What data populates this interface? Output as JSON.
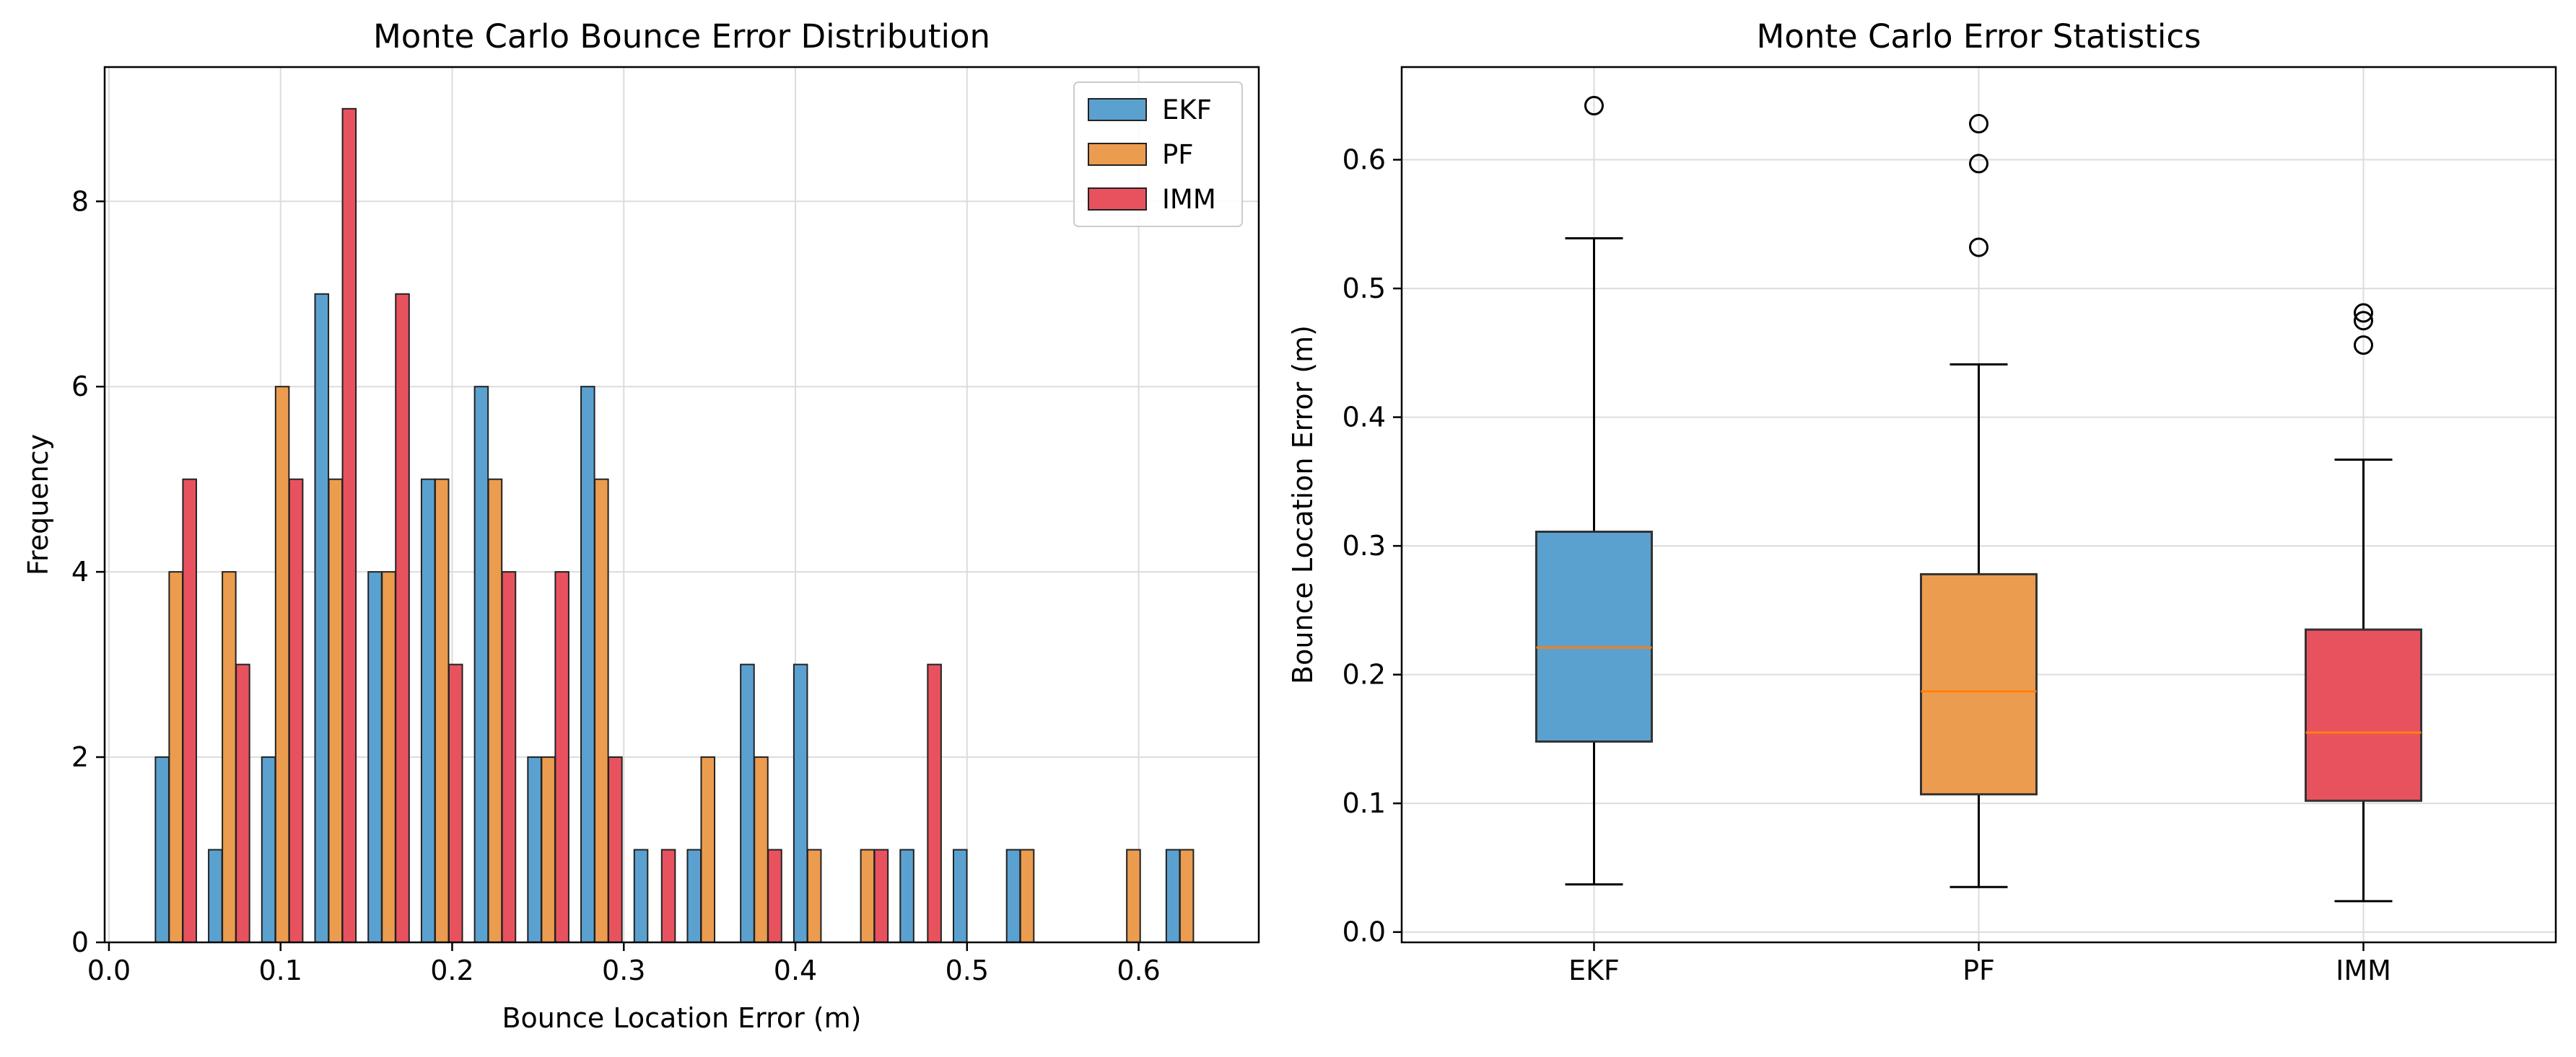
{
  "chart_data": [
    {
      "type": "bar",
      "title": "Monte Carlo Bounce Error Distribution",
      "xlabel": "Bounce Location Error (m)",
      "ylabel": "Frequency",
      "xlim": [
        -0.0025,
        0.67
      ],
      "ylim": [
        0,
        9.45
      ],
      "xticks": [
        "0.0",
        "0.1",
        "0.2",
        "0.3",
        "0.4",
        "0.5",
        "0.6"
      ],
      "yticks": [
        "0",
        "2",
        "4",
        "6",
        "8"
      ],
      "grid": true,
      "legend_position": "top-right",
      "series": [
        {
          "name": "EKF",
          "color": "#5ba1d0",
          "points": [
            {
              "x": 0.031,
              "value": 2
            },
            {
              "x": 0.062,
              "value": 1
            },
            {
              "x": 0.093,
              "value": 2
            },
            {
              "x": 0.124,
              "value": 7
            },
            {
              "x": 0.155,
              "value": 4
            },
            {
              "x": 0.186,
              "value": 5
            },
            {
              "x": 0.217,
              "value": 6
            },
            {
              "x": 0.248,
              "value": 2
            },
            {
              "x": 0.279,
              "value": 6
            },
            {
              "x": 0.31,
              "value": 1
            },
            {
              "x": 0.341,
              "value": 1
            },
            {
              "x": 0.372,
              "value": 3
            },
            {
              "x": 0.403,
              "value": 3
            },
            {
              "x": 0.465,
              "value": 1
            },
            {
              "x": 0.496,
              "value": 1
            },
            {
              "x": 0.527,
              "value": 1
            },
            {
              "x": 0.62,
              "value": 1
            }
          ]
        },
        {
          "name": "PF",
          "color": "#ec9c4f",
          "points": [
            {
              "x": 0.039,
              "value": 4
            },
            {
              "x": 0.07,
              "value": 4
            },
            {
              "x": 0.101,
              "value": 6
            },
            {
              "x": 0.132,
              "value": 5
            },
            {
              "x": 0.163,
              "value": 4
            },
            {
              "x": 0.194,
              "value": 5
            },
            {
              "x": 0.225,
              "value": 5
            },
            {
              "x": 0.256,
              "value": 2
            },
            {
              "x": 0.287,
              "value": 5
            },
            {
              "x": 0.349,
              "value": 2
            },
            {
              "x": 0.38,
              "value": 2
            },
            {
              "x": 0.411,
              "value": 1
            },
            {
              "x": 0.442,
              "value": 1
            },
            {
              "x": 0.535,
              "value": 1
            },
            {
              "x": 0.597,
              "value": 1
            },
            {
              "x": 0.628,
              "value": 1
            }
          ]
        },
        {
          "name": "IMM",
          "color": "#e8525f",
          "points": [
            {
              "x": 0.047,
              "value": 5
            },
            {
              "x": 0.078,
              "value": 3
            },
            {
              "x": 0.109,
              "value": 5
            },
            {
              "x": 0.14,
              "value": 9
            },
            {
              "x": 0.171,
              "value": 7
            },
            {
              "x": 0.202,
              "value": 3
            },
            {
              "x": 0.233,
              "value": 4
            },
            {
              "x": 0.264,
              "value": 4
            },
            {
              "x": 0.295,
              "value": 2
            },
            {
              "x": 0.326,
              "value": 1
            },
            {
              "x": 0.388,
              "value": 1
            },
            {
              "x": 0.45,
              "value": 1
            },
            {
              "x": 0.481,
              "value": 3
            }
          ]
        }
      ]
    },
    {
      "type": "box",
      "title": "Monte Carlo Error Statistics",
      "xlabel": "",
      "ylabel": "Bounce Location Error (m)",
      "ylim": [
        -0.008,
        0.672
      ],
      "yticks": [
        "0.0",
        "0.1",
        "0.2",
        "0.3",
        "0.4",
        "0.5",
        "0.6"
      ],
      "grid": true,
      "categories": [
        "EKF",
        "PF",
        "IMM"
      ],
      "boxes": [
        {
          "name": "EKF",
          "color": "#5ba1d0",
          "whisker_low": 0.037,
          "q1": 0.148,
          "median": 0.221,
          "q3": 0.311,
          "whisker_high": 0.539,
          "outliers": [
            0.642
          ]
        },
        {
          "name": "PF",
          "color": "#ec9c4f",
          "whisker_low": 0.035,
          "q1": 0.107,
          "median": 0.187,
          "q3": 0.278,
          "whisker_high": 0.441,
          "outliers": [
            0.532,
            0.597,
            0.628
          ]
        },
        {
          "name": "IMM",
          "color": "#e8525f",
          "whisker_low": 0.024,
          "q1": 0.102,
          "median": 0.155,
          "q3": 0.235,
          "whisker_high": 0.367,
          "outliers": [
            0.456,
            0.475,
            0.481
          ]
        }
      ],
      "median_color": "#ff7f0e"
    }
  ]
}
